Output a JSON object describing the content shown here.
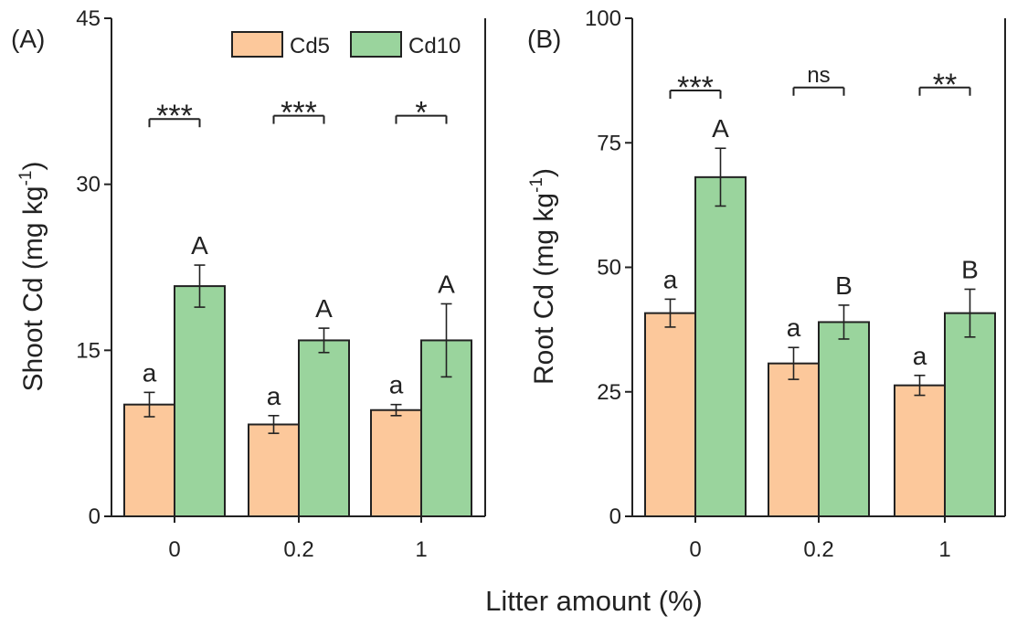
{
  "colors": {
    "cd5": "#FCC89B",
    "cd10": "#9AD49D",
    "ink": "#222222"
  },
  "figure": {
    "xlabel": "Litter amount (%)"
  },
  "chart_data": [
    {
      "type": "bar",
      "panel_label": "(A)",
      "ylabel": "Shoot Cd  (mg kg",
      "ylabel_sup": "-1",
      "ylabel_close": ")",
      "ylim": [
        0,
        45
      ],
      "yticks": [
        "0",
        "15",
        "30",
        "45"
      ],
      "categories": [
        "0",
        "0.2",
        "1"
      ],
      "series": [
        {
          "name": "Cd5",
          "values": [
            10.1,
            8.3,
            9.6
          ],
          "errors": [
            1.1,
            0.8,
            0.5
          ],
          "letters": [
            "a",
            "a",
            "a"
          ]
        },
        {
          "name": "Cd10",
          "values": [
            20.8,
            15.9,
            15.9
          ],
          "errors": [
            1.9,
            1.1,
            3.3
          ],
          "letters": [
            "A",
            "A",
            "A"
          ]
        }
      ],
      "significance": [
        "***",
        "***",
        "*"
      ],
      "significance_level": [
        35.9,
        36.2,
        36.2
      ],
      "legend": {
        "position": "top-right",
        "entries": [
          "Cd5",
          "Cd10"
        ]
      }
    },
    {
      "type": "bar",
      "panel_label": "(B)",
      "ylabel": "Root Cd (mg kg",
      "ylabel_sup": "-1",
      "ylabel_close": ")",
      "ylim": [
        0,
        100
      ],
      "yticks": [
        "0",
        "25",
        "50",
        "75",
        "100"
      ],
      "categories": [
        "0",
        "0.2",
        "1"
      ],
      "series": [
        {
          "name": "Cd5",
          "values": [
            40.8,
            30.7,
            26.3
          ],
          "errors": [
            2.8,
            3.2,
            2.0
          ],
          "letters": [
            "a",
            "a",
            "a"
          ]
        },
        {
          "name": "Cd10",
          "values": [
            68.1,
            39.0,
            40.8
          ],
          "errors": [
            5.8,
            3.4,
            4.8
          ],
          "letters": [
            "A",
            "B",
            "B"
          ]
        }
      ],
      "significance": [
        "***",
        "ns",
        "**"
      ],
      "significance_level": [
        85.5,
        86.1,
        86.1
      ]
    }
  ]
}
